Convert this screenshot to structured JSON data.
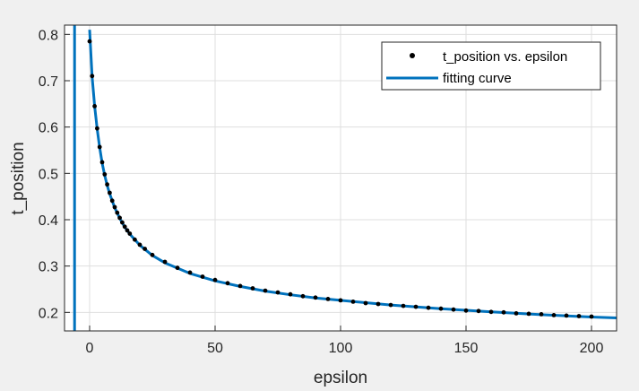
{
  "chart_data": {
    "type": "scatter",
    "title": "",
    "xlabel": "epsilon",
    "ylabel": "t_position",
    "xlim": [
      -10,
      210
    ],
    "ylim": [
      0.16,
      0.82
    ],
    "x_ticks": [
      0,
      50,
      100,
      150,
      200
    ],
    "y_ticks": [
      0.2,
      0.3,
      0.4,
      0.5,
      0.6,
      0.7,
      0.8
    ],
    "x_tick_labels": [
      "0",
      "50",
      "100",
      "150",
      "200"
    ],
    "y_tick_labels": [
      "0.2",
      "0.3",
      "0.4",
      "0.5",
      "0.6",
      "0.7",
      "0.8"
    ],
    "grid": true,
    "legend_position": "top-right",
    "series": [
      {
        "name": "t_position vs. epsilon",
        "kind": "markers",
        "color": "#000000",
        "x": [
          0,
          1,
          2,
          3,
          4,
          5,
          6,
          7,
          8,
          9,
          10,
          11,
          12,
          13,
          14,
          15,
          16,
          18,
          20,
          22,
          25,
          30,
          35,
          40,
          45,
          50,
          55,
          60,
          65,
          70,
          75,
          80,
          85,
          90,
          95,
          100,
          105,
          110,
          115,
          120,
          125,
          130,
          135,
          140,
          145,
          150,
          155,
          160,
          165,
          170,
          175,
          180,
          185,
          190,
          195,
          200
        ],
        "y": [
          0.785,
          0.71,
          0.645,
          0.597,
          0.557,
          0.524,
          0.498,
          0.476,
          0.458,
          0.441,
          0.427,
          0.415,
          0.404,
          0.394,
          0.385,
          0.377,
          0.37,
          0.357,
          0.346,
          0.337,
          0.324,
          0.309,
          0.296,
          0.286,
          0.277,
          0.27,
          0.263,
          0.257,
          0.252,
          0.247,
          0.243,
          0.239,
          0.235,
          0.232,
          0.229,
          0.226,
          0.223,
          0.22,
          0.218,
          0.216,
          0.214,
          0.212,
          0.21,
          0.208,
          0.206,
          0.204,
          0.203,
          0.201,
          0.2,
          0.198,
          0.197,
          0.196,
          0.194,
          0.193,
          0.192,
          0.191
        ]
      },
      {
        "name": "fitting curve",
        "kind": "line",
        "color": "#0072BD",
        "x": [
          0,
          1,
          2,
          3,
          4,
          5,
          6,
          7,
          8,
          10,
          12,
          14,
          16,
          20,
          25,
          30,
          40,
          50,
          60,
          70,
          80,
          90,
          100,
          120,
          140,
          160,
          180,
          200,
          210
        ],
        "y": [
          0.81,
          0.708,
          0.645,
          0.596,
          0.556,
          0.522,
          0.496,
          0.474,
          0.456,
          0.426,
          0.403,
          0.384,
          0.369,
          0.345,
          0.323,
          0.307,
          0.284,
          0.268,
          0.256,
          0.246,
          0.238,
          0.231,
          0.226,
          0.216,
          0.208,
          0.201,
          0.195,
          0.19,
          0.188
        ]
      }
    ],
    "asymptote": {
      "x": -6,
      "color": "#0072BD"
    }
  }
}
